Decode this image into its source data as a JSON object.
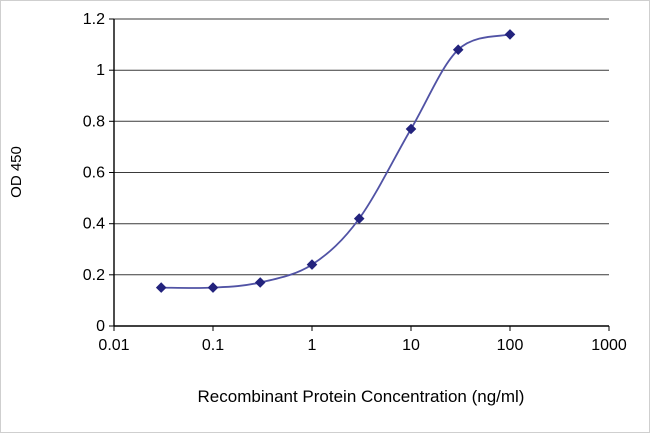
{
  "chart_data": {
    "type": "line",
    "x": [
      0.03,
      0.1,
      0.3,
      1,
      3,
      10,
      30,
      100
    ],
    "y": [
      0.15,
      0.15,
      0.17,
      0.24,
      0.42,
      0.77,
      1.08,
      1.14
    ],
    "xlabel": "Recombinant Protein Concentration (ng/ml)",
    "ylabel": "OD 450",
    "x_scale": "log",
    "xlim": [
      0.01,
      1000
    ],
    "ylim": [
      0,
      1.2
    ],
    "x_ticks": [
      0.01,
      0.1,
      1,
      10,
      100,
      1000
    ],
    "x_tick_labels": [
      "0.01",
      "0.1",
      "1",
      "10",
      "100",
      "1000"
    ],
    "y_ticks": [
      0,
      0.2,
      0.4,
      0.6,
      0.8,
      1,
      1.2
    ],
    "y_tick_labels": [
      "0",
      "0.2",
      "0.4",
      "0.6",
      "0.8",
      "1",
      "1.2"
    ],
    "grid": "horizontal",
    "legend": "none",
    "marker": "diamond",
    "line_smooth": true,
    "colors": {
      "line": "#5153a5",
      "marker": "#23237d",
      "grid": "#3a3a3a",
      "axis": "#000000",
      "plot_background": "#ffffff"
    }
  }
}
